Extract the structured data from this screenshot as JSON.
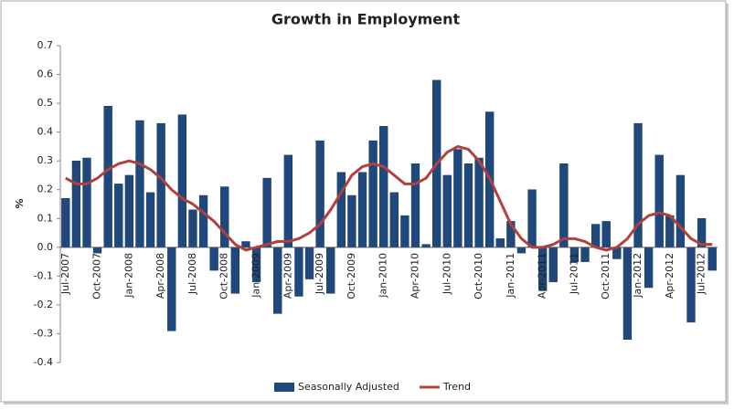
{
  "chart_data": {
    "type": "bar",
    "title": "Growth in Employment",
    "y_label": "%",
    "categories": [
      "Jul-2007",
      null,
      null,
      "Oct-2007",
      null,
      null,
      "Jan-2008",
      null,
      null,
      "Apr-2008",
      null,
      null,
      "Jul-2008",
      null,
      null,
      "Oct-2008",
      null,
      null,
      "Jan-2009",
      null,
      null,
      "Apr-2009",
      null,
      null,
      "Jul-2009",
      null,
      null,
      "Oct-2009",
      null,
      null,
      "Jan-2010",
      null,
      null,
      "Apr-2010",
      null,
      null,
      "Jul-2010",
      null,
      null,
      "Oct-2010",
      null,
      null,
      "Jan-2011",
      null,
      null,
      "Apr-2011",
      null,
      null,
      "Jul-2011",
      null,
      null,
      "Oct-2011",
      null,
      null,
      "Jan-2012",
      null,
      null,
      "Apr-2012",
      null,
      null,
      "Jul-2012",
      null
    ],
    "series": [
      {
        "name": "Seasonally Adjusted",
        "type": "bar",
        "color": "#1f497d",
        "values": [
          0.17,
          0.3,
          0.31,
          -0.02,
          0.49,
          0.22,
          0.25,
          0.44,
          0.19,
          0.43,
          -0.29,
          0.46,
          0.13,
          0.18,
          -0.08,
          0.21,
          -0.16,
          0.02,
          -0.12,
          0.24,
          -0.23,
          0.32,
          -0.17,
          -0.11,
          0.37,
          -0.16,
          0.26,
          0.18,
          0.26,
          0.37,
          0.42,
          0.19,
          0.11,
          0.29,
          0.01,
          0.58,
          0.25,
          0.34,
          0.29,
          0.31,
          0.47,
          0.03,
          0.09,
          -0.02,
          0.2,
          -0.15,
          -0.12,
          0.29,
          -0.05,
          -0.05,
          0.08,
          0.09,
          -0.04,
          -0.32,
          0.43,
          -0.14,
          0.32,
          0.11,
          0.25,
          -0.26,
          0.1,
          -0.08
        ]
      },
      {
        "name": "Trend",
        "type": "line",
        "color": "#b2413e",
        "values": [
          0.24,
          0.22,
          0.22,
          0.24,
          0.27,
          0.29,
          0.3,
          0.29,
          0.27,
          0.24,
          0.2,
          0.17,
          0.15,
          0.12,
          0.09,
          0.05,
          0.01,
          -0.01,
          0.0,
          0.01,
          0.02,
          0.02,
          0.03,
          0.05,
          0.08,
          0.13,
          0.19,
          0.25,
          0.28,
          0.29,
          0.28,
          0.25,
          0.22,
          0.22,
          0.24,
          0.29,
          0.33,
          0.35,
          0.34,
          0.3,
          0.24,
          0.16,
          0.08,
          0.03,
          0.0,
          0.0,
          0.01,
          0.03,
          0.03,
          0.02,
          0.0,
          -0.01,
          0.0,
          0.03,
          0.08,
          0.11,
          0.12,
          0.11,
          0.07,
          0.03,
          0.01,
          0.01
        ]
      }
    ],
    "ylim": [
      -0.4,
      0.7
    ],
    "yticks": [
      -0.4,
      -0.3,
      -0.2,
      -0.1,
      {
        "value": 0,
        "label": "0.0"
      },
      0.1,
      0.2,
      0.3,
      0.4,
      0.5,
      0.6,
      0.7
    ],
    "grid": false,
    "legend": "bottom"
  }
}
